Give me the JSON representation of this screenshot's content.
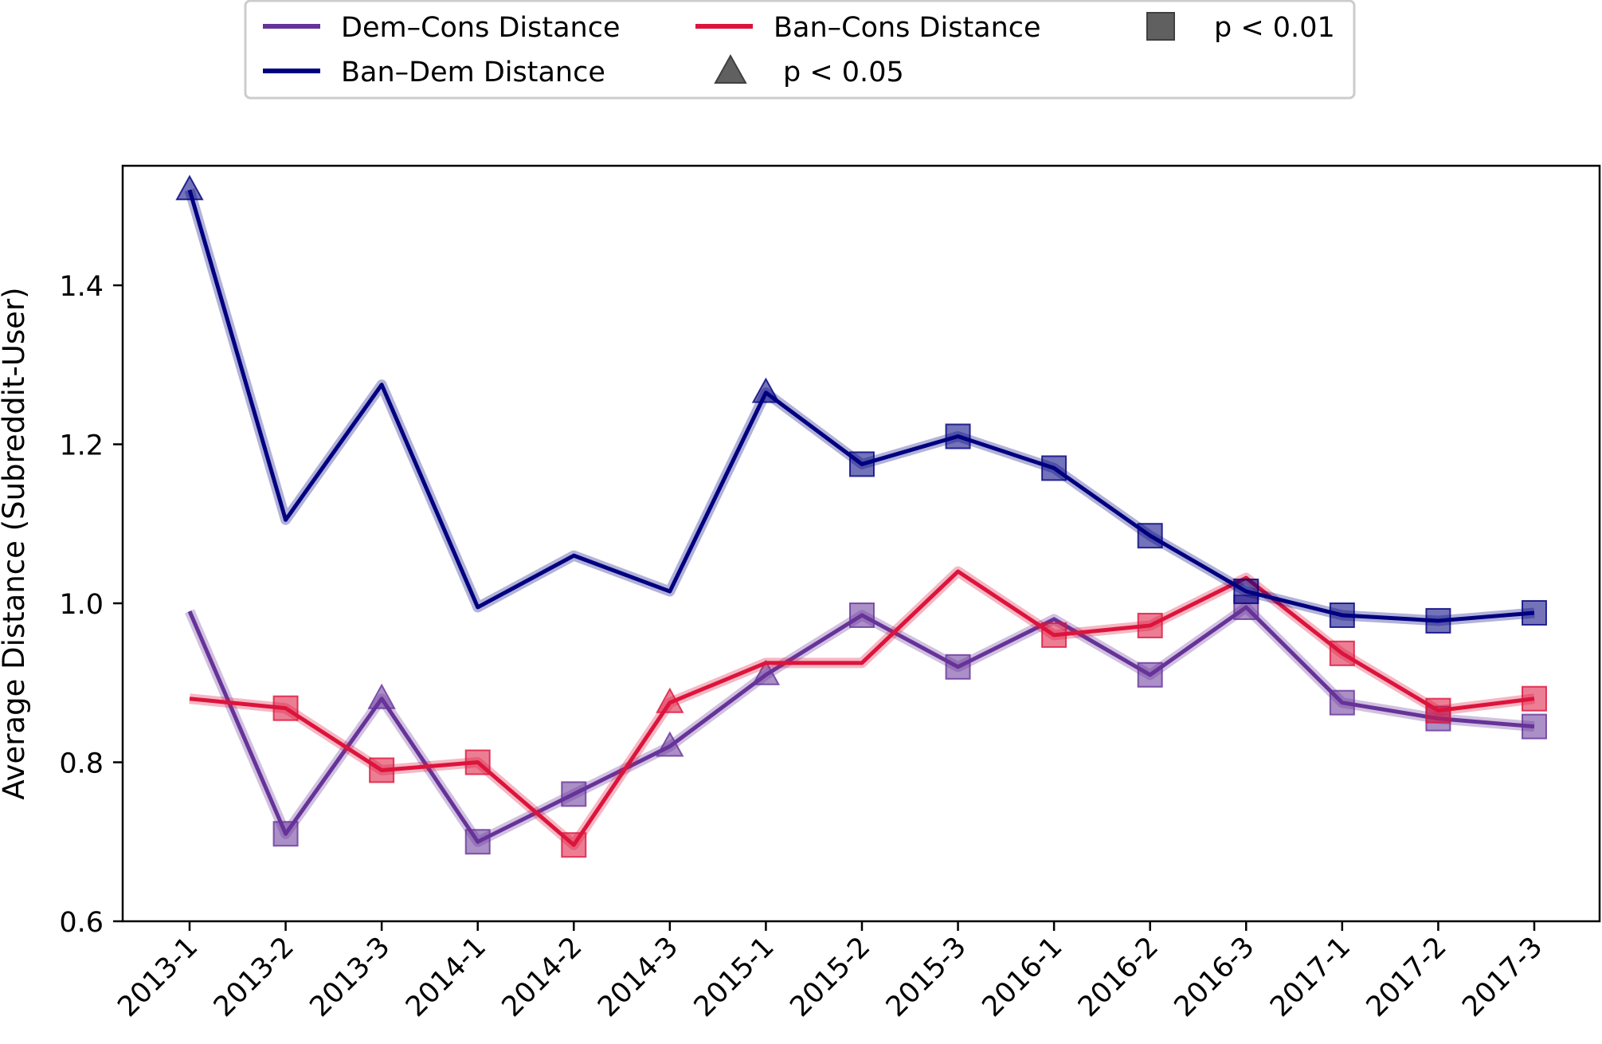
{
  "chart_data": {
    "type": "line",
    "title": "",
    "xlabel": "",
    "ylabel": "Average Distance (Subreddit-User)",
    "ylim": [
      0.6,
      1.55
    ],
    "yticks": [
      0.6,
      0.8,
      1.0,
      1.2,
      1.4
    ],
    "ytick_labels": [
      "0.6",
      "0.8",
      "1.0",
      "1.2",
      "1.4"
    ],
    "grid": false,
    "legend_position": "top-center",
    "categories": [
      "2013-1",
      "2013-2",
      "2013-3",
      "2014-1",
      "2014-2",
      "2014-3",
      "2015-1",
      "2015-2",
      "2015-3",
      "2016-1",
      "2016-2",
      "2016-3",
      "2017-1",
      "2017-2",
      "2017-3"
    ],
    "series": [
      {
        "name": "Dem–Cons Distance",
        "color": "#663399",
        "values": [
          0.99,
          0.71,
          0.88,
          0.7,
          0.76,
          0.82,
          0.91,
          0.985,
          0.92,
          0.98,
          0.91,
          0.995,
          0.875,
          0.855,
          0.845
        ],
        "markers": [
          "none",
          "square",
          "triangle",
          "square",
          "square",
          "triangle",
          "triangle",
          "square",
          "square",
          "none",
          "square",
          "square",
          "square",
          "square",
          "square"
        ]
      },
      {
        "name": "Ban–Cons Distance",
        "color": "#dc143c",
        "values": [
          0.88,
          0.868,
          0.79,
          0.8,
          0.696,
          0.875,
          0.925,
          0.925,
          1.04,
          0.96,
          0.972,
          1.032,
          0.937,
          0.865,
          0.88
        ],
        "markers": [
          "none",
          "square",
          "square",
          "square",
          "square",
          "triangle",
          "none",
          "none",
          "none",
          "square",
          "square",
          "none",
          "square",
          "square",
          "square"
        ]
      },
      {
        "name": "Ban–Dem Distance",
        "color": "#000080",
        "values": [
          1.52,
          1.105,
          1.275,
          0.995,
          1.06,
          1.015,
          1.265,
          1.175,
          1.21,
          1.17,
          1.085,
          1.015,
          0.985,
          0.978,
          0.988
        ],
        "markers": [
          "triangle",
          "none",
          "none",
          "none",
          "none",
          "none",
          "triangle",
          "square",
          "square",
          "square",
          "square",
          "square",
          "square",
          "square",
          "square"
        ]
      }
    ],
    "legend": [
      {
        "label": "Dem–Cons Distance",
        "kind": "line",
        "color": "#663399"
      },
      {
        "label": "Ban–Cons Distance",
        "kind": "line",
        "color": "#dc143c"
      },
      {
        "label": "p < 0.01",
        "kind": "square",
        "color": "#808080"
      },
      {
        "label": "Ban–Dem Distance",
        "kind": "line",
        "color": "#000080"
      },
      {
        "label": "p < 0.05",
        "kind": "triangle",
        "color": "#808080"
      }
    ]
  }
}
